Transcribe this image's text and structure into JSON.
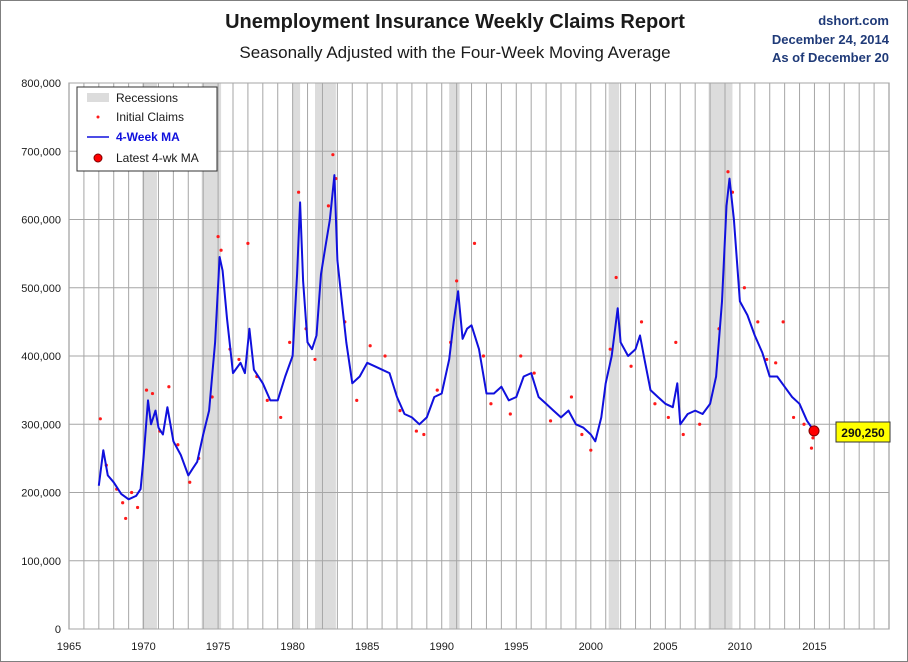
{
  "header": {
    "title": "Unemployment Insurance Weekly Claims Report",
    "subtitle": "Seasonally Adjusted with the Four-Week Moving Average",
    "source": "dshort.com",
    "date": "December 24, 2014",
    "as_of": "As of December 20"
  },
  "colors": {
    "ma_line": "#1010dd",
    "claims_dots": "#ff1a1a",
    "recession_band": "#dcdcdc",
    "grid": "#a6a6a6",
    "callout_fill": "#ffff00"
  },
  "chart_data": {
    "type": "line",
    "title": "Unemployment Insurance Weekly Claims Report",
    "subtitle": "Seasonally Adjusted with the Four-Week Moving Average",
    "xlim": [
      1965,
      2020
    ],
    "ylim": [
      0,
      800000
    ],
    "x_ticks": [
      1965,
      1970,
      1975,
      1980,
      1985,
      1990,
      1995,
      2000,
      2005,
      2010,
      2015
    ],
    "y_ticks": [
      0,
      100000,
      200000,
      300000,
      400000,
      500000,
      600000,
      700000,
      800000
    ],
    "x_tick_labels": [
      "1965",
      "1970",
      "1975",
      "1980",
      "1985",
      "1990",
      "1995",
      "2000",
      "2005",
      "2010",
      "2015"
    ],
    "y_tick_labels": [
      "0",
      "100,000",
      "200,000",
      "300,000",
      "400,000",
      "500,000",
      "600,000",
      "700,000",
      "800,000"
    ],
    "grid": true,
    "legend_position": "top-left",
    "recessions": [
      [
        1969.9,
        1970.9
      ],
      [
        1973.9,
        1975.2
      ],
      [
        1980.0,
        1980.5
      ],
      [
        1981.5,
        1982.9
      ],
      [
        1990.5,
        1991.2
      ],
      [
        2001.2,
        2001.9
      ],
      [
        2007.9,
        2009.5
      ]
    ],
    "series": [
      {
        "name": "4-Week MA",
        "points": [
          [
            1967.0,
            210000
          ],
          [
            1967.3,
            262000
          ],
          [
            1967.6,
            225000
          ],
          [
            1968.0,
            215000
          ],
          [
            1968.5,
            198000
          ],
          [
            1969.0,
            190000
          ],
          [
            1969.5,
            195000
          ],
          [
            1969.8,
            205000
          ],
          [
            1970.0,
            250000
          ],
          [
            1970.3,
            335000
          ],
          [
            1970.5,
            300000
          ],
          [
            1970.8,
            320000
          ],
          [
            1971.0,
            295000
          ],
          [
            1971.3,
            285000
          ],
          [
            1971.6,
            325000
          ],
          [
            1972.0,
            275000
          ],
          [
            1972.5,
            255000
          ],
          [
            1973.0,
            225000
          ],
          [
            1973.3,
            235000
          ],
          [
            1973.6,
            245000
          ],
          [
            1974.0,
            285000
          ],
          [
            1974.4,
            320000
          ],
          [
            1974.8,
            420000
          ],
          [
            1975.1,
            545000
          ],
          [
            1975.3,
            525000
          ],
          [
            1975.6,
            455000
          ],
          [
            1976.0,
            375000
          ],
          [
            1976.5,
            390000
          ],
          [
            1976.8,
            375000
          ],
          [
            1977.1,
            440000
          ],
          [
            1977.4,
            380000
          ],
          [
            1978.0,
            360000
          ],
          [
            1978.5,
            335000
          ],
          [
            1979.0,
            335000
          ],
          [
            1979.5,
            370000
          ],
          [
            1980.0,
            400000
          ],
          [
            1980.3,
            520000
          ],
          [
            1980.5,
            625000
          ],
          [
            1980.7,
            510000
          ],
          [
            1981.0,
            420000
          ],
          [
            1981.3,
            410000
          ],
          [
            1981.6,
            430000
          ],
          [
            1981.9,
            520000
          ],
          [
            1982.2,
            560000
          ],
          [
            1982.5,
            600000
          ],
          [
            1982.8,
            665000
          ],
          [
            1983.0,
            540000
          ],
          [
            1983.3,
            480000
          ],
          [
            1983.6,
            420000
          ],
          [
            1984.0,
            360000
          ],
          [
            1984.5,
            370000
          ],
          [
            1985.0,
            390000
          ],
          [
            1985.5,
            385000
          ],
          [
            1986.0,
            380000
          ],
          [
            1986.5,
            375000
          ],
          [
            1987.0,
            340000
          ],
          [
            1987.5,
            315000
          ],
          [
            1988.0,
            310000
          ],
          [
            1988.5,
            300000
          ],
          [
            1989.0,
            310000
          ],
          [
            1989.5,
            340000
          ],
          [
            1990.0,
            345000
          ],
          [
            1990.5,
            395000
          ],
          [
            1990.8,
            450000
          ],
          [
            1991.1,
            495000
          ],
          [
            1991.4,
            425000
          ],
          [
            1991.7,
            440000
          ],
          [
            1992.0,
            445000
          ],
          [
            1992.5,
            410000
          ],
          [
            1993.0,
            345000
          ],
          [
            1993.5,
            345000
          ],
          [
            1994.0,
            355000
          ],
          [
            1994.5,
            335000
          ],
          [
            1995.0,
            340000
          ],
          [
            1995.5,
            370000
          ],
          [
            1996.0,
            375000
          ],
          [
            1996.5,
            340000
          ],
          [
            1997.0,
            330000
          ],
          [
            1997.5,
            320000
          ],
          [
            1998.0,
            310000
          ],
          [
            1998.5,
            320000
          ],
          [
            1999.0,
            300000
          ],
          [
            1999.5,
            295000
          ],
          [
            2000.0,
            285000
          ],
          [
            2000.3,
            275000
          ],
          [
            2000.7,
            310000
          ],
          [
            2001.0,
            360000
          ],
          [
            2001.4,
            400000
          ],
          [
            2001.8,
            470000
          ],
          [
            2002.0,
            420000
          ],
          [
            2002.5,
            400000
          ],
          [
            2003.0,
            410000
          ],
          [
            2003.3,
            430000
          ],
          [
            2003.6,
            395000
          ],
          [
            2004.0,
            350000
          ],
          [
            2004.5,
            340000
          ],
          [
            2005.0,
            330000
          ],
          [
            2005.5,
            325000
          ],
          [
            2005.8,
            360000
          ],
          [
            2006.0,
            300000
          ],
          [
            2006.5,
            315000
          ],
          [
            2007.0,
            320000
          ],
          [
            2007.5,
            315000
          ],
          [
            2008.0,
            330000
          ],
          [
            2008.4,
            370000
          ],
          [
            2008.8,
            480000
          ],
          [
            2009.1,
            620000
          ],
          [
            2009.3,
            660000
          ],
          [
            2009.6,
            600000
          ],
          [
            2010.0,
            480000
          ],
          [
            2010.5,
            460000
          ],
          [
            2011.0,
            430000
          ],
          [
            2011.5,
            405000
          ],
          [
            2012.0,
            370000
          ],
          [
            2012.5,
            370000
          ],
          [
            2013.0,
            355000
          ],
          [
            2013.5,
            340000
          ],
          [
            2014.0,
            330000
          ],
          [
            2014.5,
            305000
          ],
          [
            2014.97,
            290250
          ]
        ]
      },
      {
        "name": "Initial Claims",
        "points": [
          [
            1967.1,
            308000
          ],
          [
            1967.5,
            240000
          ],
          [
            1968.2,
            205000
          ],
          [
            1968.6,
            185000
          ],
          [
            1968.8,
            162000
          ],
          [
            1969.2,
            200000
          ],
          [
            1969.6,
            178000
          ],
          [
            1970.2,
            350000
          ],
          [
            1970.6,
            345000
          ],
          [
            1971.1,
            290000
          ],
          [
            1971.7,
            355000
          ],
          [
            1972.3,
            270000
          ],
          [
            1973.1,
            215000
          ],
          [
            1973.7,
            250000
          ],
          [
            1974.6,
            340000
          ],
          [
            1975.0,
            575000
          ],
          [
            1975.2,
            555000
          ],
          [
            1975.8,
            410000
          ],
          [
            1976.4,
            395000
          ],
          [
            1977.0,
            565000
          ],
          [
            1977.6,
            370000
          ],
          [
            1978.3,
            335000
          ],
          [
            1979.2,
            310000
          ],
          [
            1979.8,
            420000
          ],
          [
            1980.4,
            640000
          ],
          [
            1980.9,
            440000
          ],
          [
            1981.5,
            395000
          ],
          [
            1982.4,
            620000
          ],
          [
            1982.7,
            695000
          ],
          [
            1982.9,
            660000
          ],
          [
            1983.5,
            450000
          ],
          [
            1984.3,
            335000
          ],
          [
            1985.2,
            415000
          ],
          [
            1986.2,
            400000
          ],
          [
            1987.2,
            320000
          ],
          [
            1988.3,
            290000
          ],
          [
            1988.8,
            285000
          ],
          [
            1989.7,
            350000
          ],
          [
            1990.6,
            420000
          ],
          [
            1991.0,
            510000
          ],
          [
            1992.2,
            565000
          ],
          [
            1992.8,
            400000
          ],
          [
            1993.3,
            330000
          ],
          [
            1994.6,
            315000
          ],
          [
            1995.3,
            400000
          ],
          [
            1996.2,
            375000
          ],
          [
            1997.3,
            305000
          ],
          [
            1998.7,
            340000
          ],
          [
            1999.4,
            285000
          ],
          [
            2000.0,
            262000
          ],
          [
            2001.3,
            410000
          ],
          [
            2001.7,
            515000
          ],
          [
            2002.7,
            385000
          ],
          [
            2003.4,
            450000
          ],
          [
            2004.3,
            330000
          ],
          [
            2005.2,
            310000
          ],
          [
            2005.7,
            420000
          ],
          [
            2006.2,
            285000
          ],
          [
            2007.3,
            300000
          ],
          [
            2008.6,
            440000
          ],
          [
            2009.2,
            670000
          ],
          [
            2009.5,
            640000
          ],
          [
            2010.3,
            500000
          ],
          [
            2011.2,
            450000
          ],
          [
            2011.8,
            395000
          ],
          [
            2012.4,
            390000
          ],
          [
            2012.9,
            450000
          ],
          [
            2013.6,
            310000
          ],
          [
            2014.3,
            300000
          ],
          [
            2014.8,
            265000
          ],
          [
            2014.9,
            280000
          ]
        ]
      }
    ],
    "legend": [
      "Recessions",
      "Initial Claims",
      "4-Week MA",
      "Latest 4-wk MA"
    ],
    "latest_ma": {
      "x": 2014.97,
      "y": 290250,
      "label": "290,250"
    }
  }
}
